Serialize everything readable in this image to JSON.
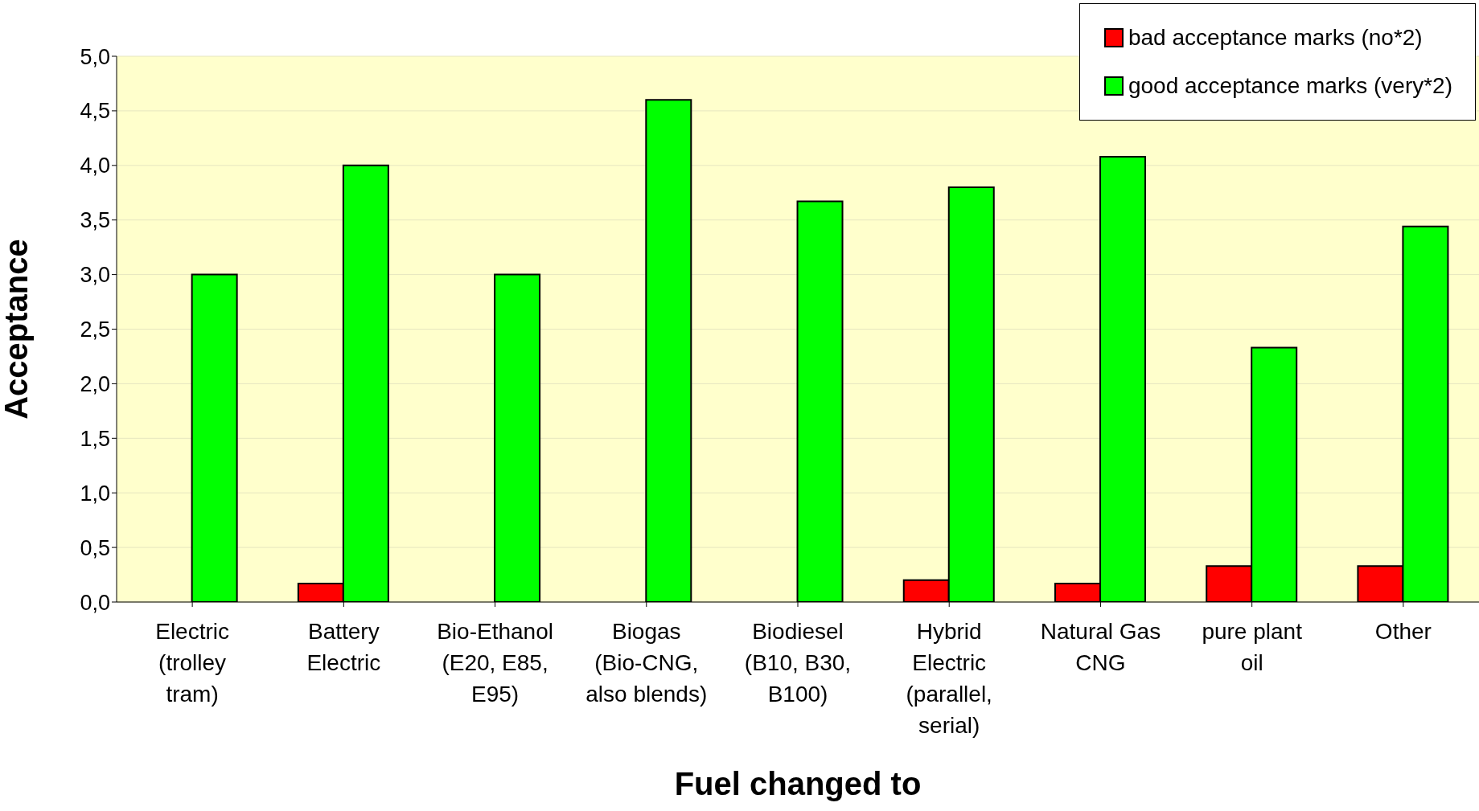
{
  "chart_data": {
    "type": "bar",
    "xlabel": "Fuel changed to",
    "ylabel": "Acceptance",
    "categories": [
      "Electric (trolley tram)",
      "Battery Electric",
      "Bio-Ethanol (E20, E85, E95)",
      "Biogas (Bio-CNG, also blends)",
      "Biodiesel (B10, B30, B100)",
      "Hybrid Electric (parallel, serial)",
      "Natural Gas CNG",
      "pure plant oil",
      "Other"
    ],
    "series": [
      {
        "name": "bad acceptance marks (no*2)",
        "color": "#ff0000",
        "values": [
          0,
          0.17,
          0,
          0,
          0,
          0.2,
          0.17,
          0.33,
          0.33
        ]
      },
      {
        "name": "good acceptance marks (very*2)",
        "color": "#00ff00",
        "values": [
          3.0,
          4.0,
          3.0,
          4.6,
          3.67,
          3.8,
          4.08,
          2.33,
          3.44
        ]
      }
    ],
    "ylim": [
      0,
      5
    ],
    "yticks": [
      {
        "value": 0,
        "label": "0,0"
      },
      {
        "value": 0.5,
        "label": "0,5"
      },
      {
        "value": 1,
        "label": "1,0"
      },
      {
        "value": 1.5,
        "label": "1,5"
      },
      {
        "value": 2,
        "label": "2,0"
      },
      {
        "value": 2.5,
        "label": "2,5"
      },
      {
        "value": 3,
        "label": "3,0"
      },
      {
        "value": 3.5,
        "label": "3,5"
      },
      {
        "value": 4,
        "label": "4,0"
      },
      {
        "value": 4.5,
        "label": "4,5"
      },
      {
        "value": 5,
        "label": "5,0"
      }
    ],
    "grid": "y",
    "legend": "top right"
  }
}
